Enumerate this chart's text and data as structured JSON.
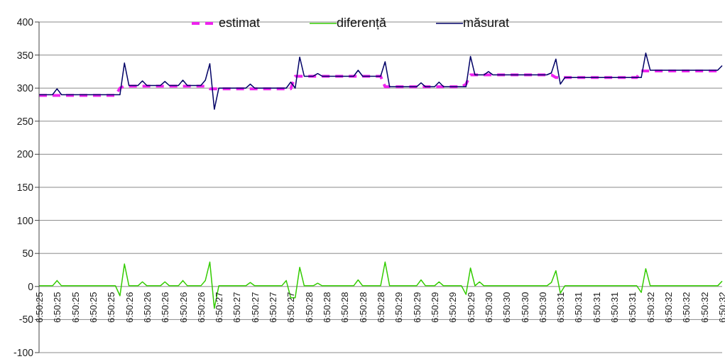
{
  "chart_data": {
    "type": "line",
    "categories": [
      "6:50:25",
      null,
      null,
      null,
      "6:50:25",
      null,
      null,
      null,
      "6:50:25",
      null,
      null,
      null,
      "6:50:25",
      null,
      null,
      null,
      "6:50:25",
      null,
      null,
      null,
      "6:50:26",
      null,
      null,
      null,
      "6:50:26",
      null,
      null,
      null,
      "6:50:26",
      null,
      null,
      null,
      "6:50:26",
      null,
      null,
      null,
      "6:50:26",
      null,
      null,
      null,
      "6:50:27",
      null,
      null,
      null,
      "6:50:27",
      null,
      null,
      null,
      "6:50:27",
      null,
      null,
      null,
      "6:50:27",
      null,
      null,
      null,
      "6:50:27",
      null,
      null,
      null,
      "6:50:28",
      null,
      null,
      null,
      "6:50:28",
      null,
      null,
      null,
      "6:50:28",
      null,
      null,
      null,
      "6:50:28",
      null,
      null,
      null,
      "6:50:28",
      null,
      null,
      null,
      "6:50:29",
      null,
      null,
      null,
      "6:50:29",
      null,
      null,
      null,
      "6:50:29",
      null,
      null,
      null,
      "6:50:29",
      null,
      null,
      null,
      "6:50:29",
      null,
      null,
      null,
      "6:50:30",
      null,
      null,
      null,
      "6:50:30",
      null,
      null,
      null,
      "6:50:30",
      null,
      null,
      null,
      "6:50:30",
      null,
      null,
      null,
      "6:50:31",
      null,
      null,
      null,
      "6:50:31",
      null,
      null,
      null,
      "6:50:31",
      null,
      null,
      null,
      "6:50:31",
      null,
      null,
      null,
      "6:50:31",
      null,
      null,
      null,
      "6:50:32",
      null,
      null,
      null,
      "6:50:32",
      null,
      null,
      null,
      "6:50:32",
      null,
      null,
      null,
      "6:50:32",
      null,
      null,
      null,
      "6:50:32"
    ],
    "series": [
      {
        "name": "estimat",
        "color": "#ee22ee",
        "line_style": "dashed",
        "values": [
          289,
          289,
          289,
          289,
          289,
          289,
          289,
          289,
          289,
          289,
          289,
          289,
          289,
          289,
          289,
          289,
          289,
          289,
          300,
          303,
          303,
          303,
          303,
          303,
          303,
          303,
          303,
          303,
          303,
          303,
          303,
          303,
          303,
          303,
          303,
          303,
          303,
          303,
          299,
          299,
          299,
          299,
          299,
          299,
          299,
          299,
          299,
          299,
          299,
          299,
          299,
          299,
          299,
          299,
          299,
          299,
          299,
          318,
          318,
          318,
          318,
          318,
          318,
          318,
          318,
          318,
          318,
          318,
          318,
          318,
          318,
          318,
          318,
          318,
          318,
          318,
          318,
          302,
          302,
          302,
          302,
          302,
          302,
          302,
          302,
          302,
          302,
          302,
          302,
          302,
          302,
          302,
          302,
          302,
          302,
          306,
          320,
          320,
          320,
          320,
          320,
          320,
          320,
          320,
          320,
          320,
          320,
          320,
          320,
          320,
          320,
          320,
          320,
          320,
          320,
          316,
          316,
          316,
          316,
          316,
          316,
          316,
          316,
          316,
          316,
          316,
          316,
          316,
          316,
          316,
          316,
          316,
          316,
          316,
          326,
          326,
          326,
          326,
          326,
          326,
          326,
          326,
          326,
          326,
          326,
          326,
          326,
          326,
          326,
          326,
          326,
          326,
          326
        ]
      },
      {
        "name": "diferență",
        "color": "#33cc00",
        "line_style": "solid",
        "values": [
          1,
          1,
          1,
          1,
          9,
          1,
          1,
          1,
          1,
          1,
          1,
          1,
          1,
          1,
          1,
          1,
          1,
          1,
          -14,
          34,
          1,
          1,
          1,
          7,
          1,
          1,
          1,
          1,
          7,
          1,
          1,
          1,
          9,
          1,
          1,
          1,
          1,
          9,
          37,
          -33,
          1,
          1,
          1,
          1,
          1,
          1,
          1,
          6,
          1,
          1,
          1,
          1,
          1,
          1,
          1,
          9,
          -17,
          -17,
          29,
          1,
          1,
          1,
          5,
          1,
          1,
          1,
          1,
          1,
          1,
          1,
          1,
          10,
          1,
          1,
          1,
          1,
          1,
          37,
          1,
          1,
          1,
          1,
          1,
          1,
          1,
          10,
          1,
          1,
          1,
          7,
          1,
          1,
          1,
          1,
          1,
          -12,
          28,
          1,
          7,
          1,
          1,
          1,
          1,
          1,
          1,
          1,
          1,
          1,
          1,
          1,
          1,
          1,
          1,
          1,
          6,
          24,
          -10,
          1,
          1,
          1,
          1,
          1,
          1,
          1,
          1,
          1,
          1,
          1,
          1,
          1,
          1,
          1,
          1,
          1,
          -9,
          27,
          1,
          1,
          1,
          1,
          1,
          1,
          1,
          1,
          1,
          1,
          1,
          1,
          1,
          1,
          1,
          1,
          8
        ]
      },
      {
        "name": "măsurat",
        "color": "#000066",
        "line_style": "solid",
        "values": [
          290,
          290,
          290,
          290,
          299,
          290,
          290,
          290,
          290,
          290,
          290,
          290,
          290,
          290,
          290,
          290,
          290,
          290,
          290,
          338,
          304,
          304,
          304,
          311,
          304,
          304,
          304,
          304,
          310,
          304,
          304,
          304,
          312,
          304,
          304,
          304,
          304,
          312,
          337,
          268,
          300,
          300,
          300,
          300,
          300,
          300,
          300,
          306,
          300,
          300,
          300,
          300,
          300,
          300,
          300,
          300,
          309,
          300,
          347,
          318,
          318,
          318,
          322,
          318,
          318,
          318,
          318,
          318,
          318,
          318,
          318,
          327,
          318,
          318,
          318,
          318,
          318,
          340,
          302,
          302,
          302,
          302,
          302,
          302,
          302,
          308,
          302,
          302,
          302,
          309,
          302,
          302,
          302,
          302,
          302,
          302,
          348,
          320,
          320,
          320,
          325,
          320,
          320,
          320,
          320,
          320,
          320,
          320,
          320,
          320,
          320,
          320,
          320,
          320,
          323,
          344,
          306,
          316,
          316,
          316,
          316,
          316,
          316,
          316,
          316,
          316,
          316,
          316,
          316,
          316,
          316,
          316,
          316,
          316,
          316,
          353,
          327,
          327,
          327,
          327,
          327,
          327,
          327,
          327,
          327,
          327,
          327,
          327,
          327,
          327,
          327,
          327,
          334
        ]
      }
    ],
    "ylim": [
      -100,
      400
    ],
    "yticks": [
      -100,
      -50,
      0,
      50,
      100,
      150,
      200,
      250,
      300,
      350,
      400
    ],
    "grid": "y",
    "legend": "top",
    "marker": "none"
  }
}
